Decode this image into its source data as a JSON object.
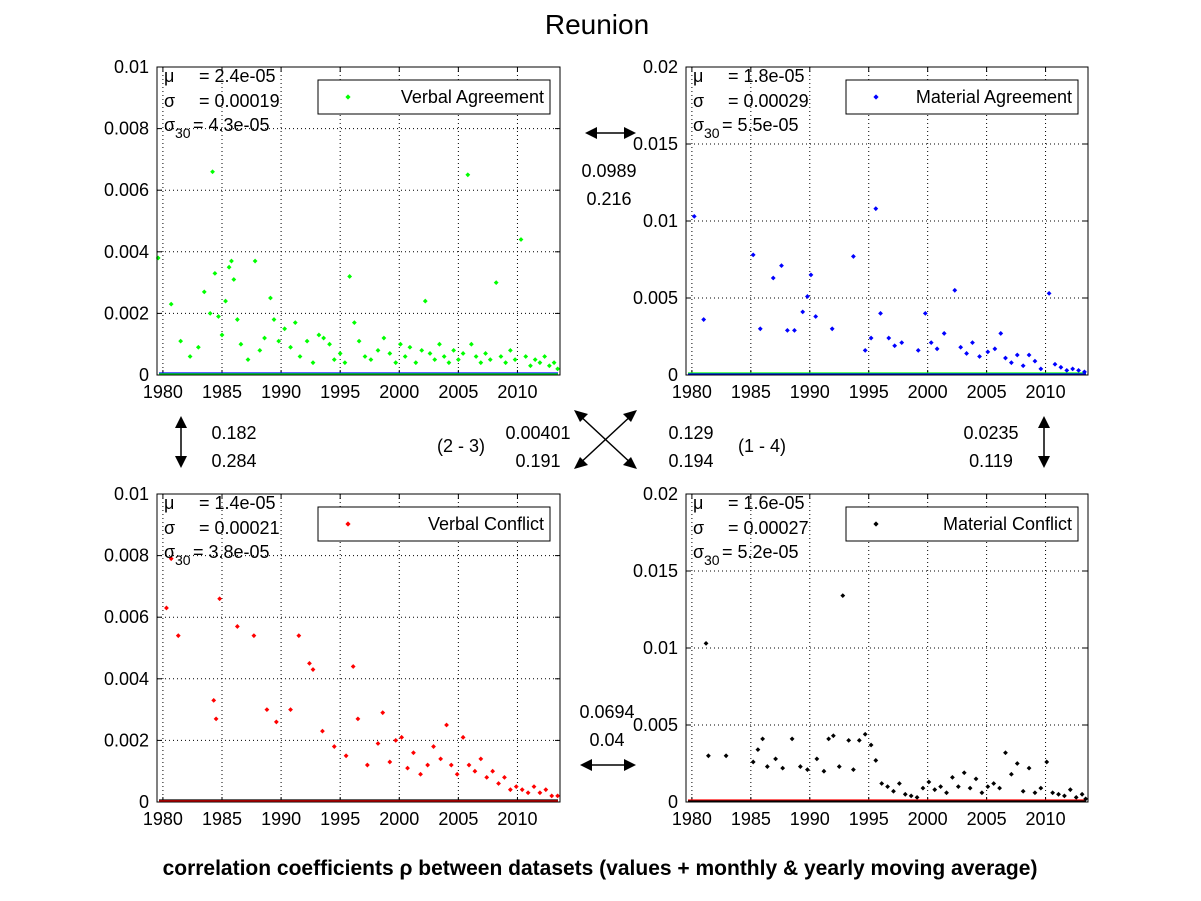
{
  "figure": {
    "title": "Reunion",
    "caption": "correlation coefficients ρ between datasets (values + monthly & yearly moving average)"
  },
  "correlations": {
    "top": {
      "value": "0.0989",
      "average": "0.216"
    },
    "left": {
      "value": "0.182",
      "average": "0.284"
    },
    "right": {
      "value": "0.0235",
      "average": "0.119"
    },
    "bottom": {
      "value": "0.0694",
      "average": "0.04"
    },
    "diag_2_3": {
      "pair": "(2 - 3)",
      "value": "0.00401",
      "average": "0.191"
    },
    "diag_1_4": {
      "pair": "(1 - 4)",
      "value": "0.129",
      "average": "0.194"
    }
  },
  "chart_data": [
    {
      "type": "scatter",
      "legend": "Verbal Agreement",
      "color": "#00ff00",
      "overlay_color": "#0000ff",
      "xlim": [
        1979.5,
        2013.6
      ],
      "ylim": [
        0,
        0.01
      ],
      "xticks": [
        "1980",
        "1985",
        "1990",
        "1995",
        "2000",
        "2005",
        "2010"
      ],
      "yticks": [
        "0",
        "0.002",
        "0.004",
        "0.006",
        "0.008",
        "0.01"
      ],
      "grid": true,
      "legend_position": "top-right",
      "stats": {
        "mu": "2.4e-05",
        "sigma": "0.00019",
        "sigma30": "4.3e-05"
      },
      "points": [
        [
          1979.6,
          0.0038
        ],
        [
          1980.7,
          0.0023
        ],
        [
          1981.5,
          0.0011
        ],
        [
          1982.3,
          0.0006
        ],
        [
          1983.0,
          0.0009
        ],
        [
          1983.5,
          0.0027
        ],
        [
          1984.0,
          0.002
        ],
        [
          1984.2,
          0.0066
        ],
        [
          1984.4,
          0.0033
        ],
        [
          1984.7,
          0.0019
        ],
        [
          1985.0,
          0.0013
        ],
        [
          1985.3,
          0.0024
        ],
        [
          1985.6,
          0.0035
        ],
        [
          1985.8,
          0.0037
        ],
        [
          1986.0,
          0.0031
        ],
        [
          1986.3,
          0.0018
        ],
        [
          1986.6,
          0.001
        ],
        [
          1987.2,
          0.0005
        ],
        [
          1987.8,
          0.0037
        ],
        [
          1988.2,
          0.0008
        ],
        [
          1988.6,
          0.0012
        ],
        [
          1989.1,
          0.0025
        ],
        [
          1989.4,
          0.0018
        ],
        [
          1989.8,
          0.0011
        ],
        [
          1990.3,
          0.0015
        ],
        [
          1990.8,
          0.0009
        ],
        [
          1991.2,
          0.0017
        ],
        [
          1991.6,
          0.0006
        ],
        [
          1992.2,
          0.0011
        ],
        [
          1992.7,
          0.0004
        ],
        [
          1993.2,
          0.0013
        ],
        [
          1993.6,
          0.0012
        ],
        [
          1994.1,
          0.001
        ],
        [
          1994.5,
          0.0005
        ],
        [
          1995.0,
          0.0007
        ],
        [
          1995.4,
          0.0004
        ],
        [
          1995.8,
          0.0032
        ],
        [
          1996.2,
          0.0017
        ],
        [
          1996.6,
          0.0011
        ],
        [
          1997.1,
          0.0006
        ],
        [
          1997.6,
          0.0005
        ],
        [
          1998.2,
          0.0008
        ],
        [
          1998.7,
          0.0012
        ],
        [
          1999.2,
          0.0007
        ],
        [
          1999.7,
          0.0004
        ],
        [
          2000.1,
          0.001
        ],
        [
          2000.5,
          0.0006
        ],
        [
          2000.9,
          0.0009
        ],
        [
          2001.4,
          0.0004
        ],
        [
          2001.9,
          0.0008
        ],
        [
          2002.2,
          0.0024
        ],
        [
          2002.6,
          0.0007
        ],
        [
          2003.0,
          0.0005
        ],
        [
          2003.4,
          0.001
        ],
        [
          2003.8,
          0.0006
        ],
        [
          2004.2,
          0.0004
        ],
        [
          2004.6,
          0.0008
        ],
        [
          2005.0,
          0.0005
        ],
        [
          2005.4,
          0.0007
        ],
        [
          2005.8,
          0.0065
        ],
        [
          2006.1,
          0.001
        ],
        [
          2006.5,
          0.0006
        ],
        [
          2006.9,
          0.0004
        ],
        [
          2007.3,
          0.0007
        ],
        [
          2007.7,
          0.0005
        ],
        [
          2008.2,
          0.003
        ],
        [
          2008.6,
          0.0006
        ],
        [
          2009.0,
          0.0004
        ],
        [
          2009.4,
          0.0008
        ],
        [
          2009.8,
          0.0005
        ],
        [
          2010.3,
          0.0044
        ],
        [
          2010.7,
          0.0006
        ],
        [
          2011.1,
          0.0003
        ],
        [
          2011.5,
          0.0005
        ],
        [
          2011.9,
          0.0004
        ],
        [
          2012.3,
          0.0006
        ],
        [
          2012.7,
          0.0003
        ],
        [
          2013.1,
          0.0004
        ],
        [
          2013.4,
          0.0002
        ]
      ]
    },
    {
      "type": "scatter",
      "legend": "Material Agreement",
      "color": "#0000ff",
      "overlay_color": "#00ff00",
      "xlim": [
        1979.5,
        2013.6
      ],
      "ylim": [
        0,
        0.02
      ],
      "xticks": [
        "1980",
        "1985",
        "1990",
        "1995",
        "2000",
        "2005",
        "2010"
      ],
      "yticks": [
        "0",
        "0.005",
        "0.01",
        "0.015",
        "0.02"
      ],
      "grid": true,
      "legend_position": "top-right",
      "stats": {
        "mu": "1.8e-05",
        "sigma": "0.00029",
        "sigma30": "5.5e-05"
      },
      "points": [
        [
          1980.2,
          0.0103
        ],
        [
          1981.0,
          0.0036
        ],
        [
          1985.2,
          0.0078
        ],
        [
          1985.8,
          0.003
        ],
        [
          1986.9,
          0.0063
        ],
        [
          1987.6,
          0.0071
        ],
        [
          1988.1,
          0.0029
        ],
        [
          1988.7,
          0.0029
        ],
        [
          1989.4,
          0.0041
        ],
        [
          1989.8,
          0.0051
        ],
        [
          1990.1,
          0.0065
        ],
        [
          1990.5,
          0.0038
        ],
        [
          1991.9,
          0.003
        ],
        [
          1993.7,
          0.0077
        ],
        [
          1994.7,
          0.0016
        ],
        [
          1995.2,
          0.0024
        ],
        [
          1995.6,
          0.0108
        ],
        [
          1996.0,
          0.004
        ],
        [
          1996.7,
          0.0024
        ],
        [
          1997.2,
          0.0019
        ],
        [
          1997.8,
          0.0021
        ],
        [
          1999.2,
          0.0016
        ],
        [
          1999.8,
          0.004
        ],
        [
          2000.3,
          0.0021
        ],
        [
          2000.8,
          0.0017
        ],
        [
          2001.4,
          0.0027
        ],
        [
          2002.3,
          0.0055
        ],
        [
          2002.8,
          0.0018
        ],
        [
          2003.3,
          0.0014
        ],
        [
          2003.8,
          0.0021
        ],
        [
          2004.4,
          0.0012
        ],
        [
          2005.1,
          0.0015
        ],
        [
          2005.7,
          0.0017
        ],
        [
          2006.2,
          0.0027
        ],
        [
          2006.6,
          0.0011
        ],
        [
          2007.1,
          0.0008
        ],
        [
          2007.6,
          0.0013
        ],
        [
          2008.1,
          0.0006
        ],
        [
          2008.6,
          0.0013
        ],
        [
          2009.1,
          0.0009
        ],
        [
          2009.6,
          0.0004
        ],
        [
          2010.3,
          0.0053
        ],
        [
          2010.8,
          0.0007
        ],
        [
          2011.3,
          0.0005
        ],
        [
          2011.8,
          0.0003
        ],
        [
          2012.3,
          0.0004
        ],
        [
          2012.8,
          0.0003
        ],
        [
          2013.3,
          0.0002
        ]
      ]
    },
    {
      "type": "scatter",
      "legend": "Verbal Conflict",
      "color": "#ff0000",
      "overlay_color": "#000000",
      "xlim": [
        1979.5,
        2013.6
      ],
      "ylim": [
        0,
        0.01
      ],
      "xticks": [
        "1980",
        "1985",
        "1990",
        "1995",
        "2000",
        "2005",
        "2010"
      ],
      "yticks": [
        "0",
        "0.002",
        "0.004",
        "0.006",
        "0.008",
        "0.01"
      ],
      "grid": true,
      "legend_position": "top-right",
      "stats": {
        "mu": "1.4e-05",
        "sigma": "0.00021",
        "sigma30": "3.8e-05"
      },
      "points": [
        [
          1980.3,
          0.0063
        ],
        [
          1980.7,
          0.0079
        ],
        [
          1981.3,
          0.0054
        ],
        [
          1984.3,
          0.0033
        ],
        [
          1984.5,
          0.0027
        ],
        [
          1984.8,
          0.0066
        ],
        [
          1986.3,
          0.0057
        ],
        [
          1987.7,
          0.0054
        ],
        [
          1988.8,
          0.003
        ],
        [
          1989.6,
          0.0026
        ],
        [
          1990.8,
          0.003
        ],
        [
          1991.5,
          0.0054
        ],
        [
          1992.4,
          0.0045
        ],
        [
          1992.7,
          0.0043
        ],
        [
          1993.5,
          0.0023
        ],
        [
          1994.5,
          0.0018
        ],
        [
          1995.5,
          0.0015
        ],
        [
          1996.1,
          0.0044
        ],
        [
          1996.5,
          0.0027
        ],
        [
          1997.3,
          0.0012
        ],
        [
          1998.2,
          0.0019
        ],
        [
          1998.6,
          0.0029
        ],
        [
          1999.2,
          0.0013
        ],
        [
          1999.7,
          0.002
        ],
        [
          2000.2,
          0.0021
        ],
        [
          2000.7,
          0.0011
        ],
        [
          2001.2,
          0.0016
        ],
        [
          2001.8,
          0.0009
        ],
        [
          2002.4,
          0.0012
        ],
        [
          2002.9,
          0.0018
        ],
        [
          2003.5,
          0.0014
        ],
        [
          2004.0,
          0.0025
        ],
        [
          2004.4,
          0.0012
        ],
        [
          2004.9,
          0.0009
        ],
        [
          2005.4,
          0.0021
        ],
        [
          2005.9,
          0.0012
        ],
        [
          2006.4,
          0.001
        ],
        [
          2006.9,
          0.0014
        ],
        [
          2007.4,
          0.0008
        ],
        [
          2007.9,
          0.001
        ],
        [
          2008.4,
          0.0006
        ],
        [
          2008.9,
          0.0008
        ],
        [
          2009.4,
          0.0004
        ],
        [
          2009.9,
          0.0005
        ],
        [
          2010.4,
          0.0004
        ],
        [
          2010.9,
          0.0003
        ],
        [
          2011.4,
          0.0005
        ],
        [
          2011.9,
          0.0003
        ],
        [
          2012.4,
          0.0004
        ],
        [
          2012.9,
          0.0002
        ],
        [
          2013.4,
          0.0002
        ]
      ]
    },
    {
      "type": "scatter",
      "legend": "Material Conflict",
      "color": "#000000",
      "overlay_color": "#ff0000",
      "xlim": [
        1979.5,
        2013.6
      ],
      "ylim": [
        0,
        0.02
      ],
      "xticks": [
        "1980",
        "1985",
        "1990",
        "1995",
        "2000",
        "2005",
        "2010"
      ],
      "yticks": [
        "0",
        "0.005",
        "0.01",
        "0.015",
        "0.02"
      ],
      "grid": true,
      "legend_position": "top-right",
      "stats": {
        "mu": "1.6e-05",
        "sigma": "0.00027",
        "sigma30": "5.2e-05"
      },
      "points": [
        [
          1981.2,
          0.0103
        ],
        [
          1981.4,
          0.003
        ],
        [
          1982.9,
          0.003
        ],
        [
          1985.2,
          0.0026
        ],
        [
          1985.6,
          0.0034
        ],
        [
          1986.0,
          0.0041
        ],
        [
          1986.4,
          0.0023
        ],
        [
          1987.1,
          0.0028
        ],
        [
          1987.7,
          0.0022
        ],
        [
          1988.5,
          0.0041
        ],
        [
          1989.2,
          0.0023
        ],
        [
          1989.8,
          0.0021
        ],
        [
          1990.6,
          0.0028
        ],
        [
          1991.2,
          0.002
        ],
        [
          1991.6,
          0.0041
        ],
        [
          1992.0,
          0.0043
        ],
        [
          1992.5,
          0.0023
        ],
        [
          1992.8,
          0.0134
        ],
        [
          1993.3,
          0.004
        ],
        [
          1993.7,
          0.0021
        ],
        [
          1994.2,
          0.004
        ],
        [
          1994.7,
          0.0044
        ],
        [
          1995.2,
          0.0037
        ],
        [
          1995.6,
          0.0027
        ],
        [
          1996.1,
          0.0012
        ],
        [
          1996.6,
          0.001
        ],
        [
          1997.1,
          0.0007
        ],
        [
          1997.6,
          0.0012
        ],
        [
          1998.1,
          0.0005
        ],
        [
          1998.6,
          0.0004
        ],
        [
          1999.1,
          0.0003
        ],
        [
          1999.6,
          0.0009
        ],
        [
          2000.1,
          0.0013
        ],
        [
          2000.6,
          0.0008
        ],
        [
          2001.1,
          0.001
        ],
        [
          2001.6,
          0.0006
        ],
        [
          2002.1,
          0.0016
        ],
        [
          2002.6,
          0.001
        ],
        [
          2003.1,
          0.0019
        ],
        [
          2003.6,
          0.0009
        ],
        [
          2004.1,
          0.0015
        ],
        [
          2004.6,
          0.0006
        ],
        [
          2005.1,
          0.001
        ],
        [
          2005.6,
          0.0012
        ],
        [
          2006.1,
          0.0009
        ],
        [
          2006.6,
          0.0032
        ],
        [
          2007.1,
          0.0018
        ],
        [
          2007.6,
          0.0025
        ],
        [
          2008.1,
          0.0007
        ],
        [
          2008.6,
          0.0022
        ],
        [
          2009.1,
          0.0006
        ],
        [
          2009.6,
          0.0009
        ],
        [
          2010.1,
          0.0026
        ],
        [
          2010.6,
          0.0006
        ],
        [
          2011.1,
          0.0005
        ],
        [
          2011.6,
          0.0004
        ],
        [
          2012.1,
          0.0008
        ],
        [
          2012.6,
          0.0003
        ],
        [
          2013.1,
          0.0005
        ],
        [
          2013.4,
          0.0002
        ]
      ]
    }
  ]
}
